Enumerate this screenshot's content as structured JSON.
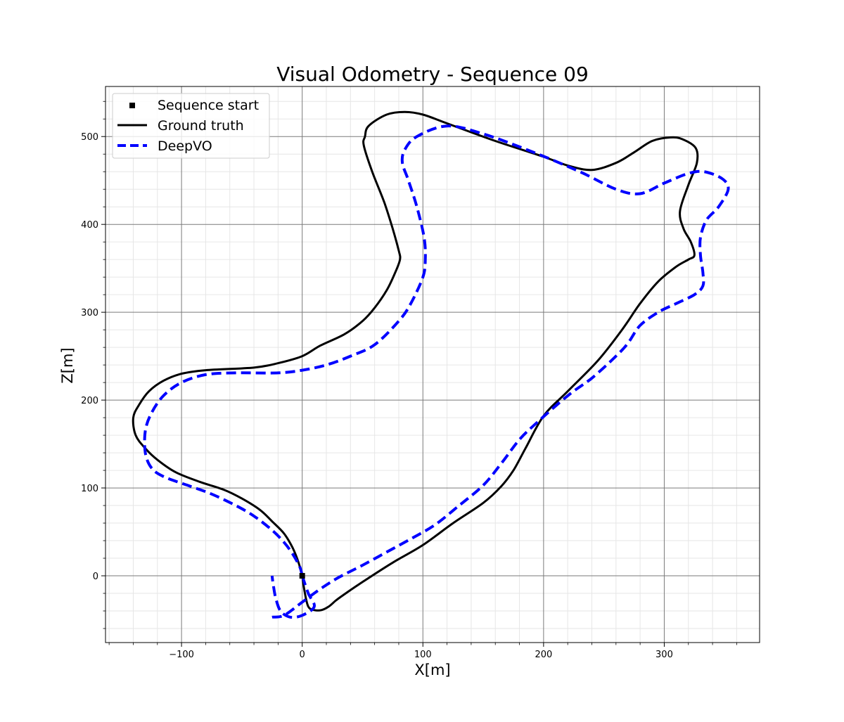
{
  "chart_data": {
    "type": "line",
    "title": "Visual Odometry - Sequence 09",
    "xlabel": "X[m]",
    "ylabel": "Z[m]",
    "xlim": [
      -163,
      379
    ],
    "ylim": [
      -76,
      557
    ],
    "x_ticks": [
      -100,
      0,
      100,
      200,
      300
    ],
    "x_tick_labels": [
      "−100",
      "0",
      "100",
      "200",
      "300"
    ],
    "y_ticks": [
      0,
      100,
      200,
      300,
      400,
      500
    ],
    "y_tick_labels": [
      "0",
      "100",
      "200",
      "300",
      "400",
      "500"
    ],
    "grid": {
      "major": true,
      "minor": true
    },
    "legend_position": "upper-left",
    "legend": [
      "Sequence start",
      "Ground truth",
      "DeepVO"
    ],
    "start_point": {
      "name": "Sequence start",
      "x": 0,
      "y": 0,
      "marker": "square",
      "color": "#000000"
    },
    "series": [
      {
        "name": "Ground truth",
        "color": "#000000",
        "style": "solid",
        "points": [
          [
            0,
            0
          ],
          [
            2,
            -18
          ],
          [
            5,
            -35
          ],
          [
            10,
            -39
          ],
          [
            16,
            -39
          ],
          [
            22,
            -35
          ],
          [
            28,
            -28
          ],
          [
            34,
            -22
          ],
          [
            50,
            -7
          ],
          [
            75,
            15
          ],
          [
            100,
            35
          ],
          [
            125,
            60
          ],
          [
            150,
            83
          ],
          [
            165,
            102
          ],
          [
            175,
            120
          ],
          [
            185,
            145
          ],
          [
            200,
            182
          ],
          [
            220,
            210
          ],
          [
            245,
            245
          ],
          [
            265,
            280
          ],
          [
            280,
            310
          ],
          [
            295,
            335
          ],
          [
            310,
            352
          ],
          [
            320,
            360
          ],
          [
            325,
            365
          ],
          [
            322,
            380
          ],
          [
            316,
            395
          ],
          [
            313,
            415
          ],
          [
            320,
            445
          ],
          [
            327,
            470
          ],
          [
            326,
            487
          ],
          [
            315,
            497
          ],
          [
            305,
            499
          ],
          [
            290,
            495
          ],
          [
            275,
            482
          ],
          [
            260,
            470
          ],
          [
            240,
            462
          ],
          [
            220,
            467
          ],
          [
            200,
            477
          ],
          [
            160,
            495
          ],
          [
            120,
            515
          ],
          [
            100,
            525
          ],
          [
            85,
            528
          ],
          [
            70,
            525
          ],
          [
            55,
            512
          ],
          [
            52,
            500
          ],
          [
            51,
            490
          ],
          [
            58,
            460
          ],
          [
            68,
            425
          ],
          [
            75,
            395
          ],
          [
            80,
            370
          ],
          [
            81,
            360
          ],
          [
            77,
            345
          ],
          [
            70,
            325
          ],
          [
            60,
            305
          ],
          [
            50,
            290
          ],
          [
            35,
            275
          ],
          [
            15,
            262
          ],
          [
            0,
            250
          ],
          [
            -20,
            242
          ],
          [
            -40,
            237
          ],
          [
            -80,
            234
          ],
          [
            -100,
            230
          ],
          [
            -115,
            222
          ],
          [
            -127,
            210
          ],
          [
            -135,
            195
          ],
          [
            -140,
            180
          ],
          [
            -138,
            160
          ],
          [
            -130,
            145
          ],
          [
            -120,
            132
          ],
          [
            -105,
            118
          ],
          [
            -85,
            107
          ],
          [
            -65,
            98
          ],
          [
            -50,
            88
          ],
          [
            -35,
            75
          ],
          [
            -25,
            62
          ],
          [
            -15,
            48
          ],
          [
            -8,
            32
          ],
          [
            -3,
            15
          ],
          [
            0,
            0
          ]
        ]
      },
      {
        "name": "DeepVO",
        "color": "#0000ff",
        "style": "dashed",
        "points": [
          [
            0,
            0
          ],
          [
            5,
            -20
          ],
          [
            10,
            -35
          ],
          [
            0,
            -45
          ],
          [
            -10,
            -47
          ],
          [
            -18,
            -40
          ],
          [
            -22,
            -25
          ],
          [
            -24,
            -10
          ],
          [
            -25,
            0
          ],
          "break",
          [
            0,
            0
          ],
          [
            -2,
            10
          ],
          [
            -8,
            25
          ],
          [
            -15,
            38
          ],
          [
            -25,
            52
          ],
          [
            -40,
            68
          ],
          [
            -55,
            80
          ],
          [
            -75,
            93
          ],
          [
            -95,
            103
          ],
          [
            -115,
            113
          ],
          [
            -125,
            123
          ],
          [
            -130,
            140
          ],
          [
            -130,
            165
          ],
          [
            -125,
            185
          ],
          [
            -115,
            205
          ],
          [
            -100,
            220
          ],
          [
            -80,
            229
          ],
          [
            -55,
            231
          ],
          [
            -20,
            231
          ],
          [
            0,
            234
          ],
          [
            20,
            240
          ],
          [
            40,
            250
          ],
          [
            60,
            263
          ],
          [
            80,
            290
          ],
          [
            90,
            310
          ],
          [
            100,
            340
          ],
          [
            102,
            360
          ],
          [
            101,
            385
          ],
          [
            95,
            420
          ],
          [
            88,
            450
          ],
          [
            83,
            470
          ],
          [
            85,
            485
          ],
          [
            95,
            500
          ],
          [
            120,
            512
          ],
          [
            150,
            503
          ],
          [
            190,
            483
          ],
          [
            230,
            460
          ],
          [
            260,
            440
          ],
          [
            280,
            435
          ],
          [
            300,
            447
          ],
          [
            320,
            458
          ],
          [
            333,
            460
          ],
          [
            348,
            452
          ],
          [
            353,
            440
          ],
          [
            345,
            420
          ],
          [
            335,
            405
          ],
          [
            330,
            385
          ],
          [
            330,
            365
          ],
          [
            332,
            345
          ],
          [
            332,
            330
          ],
          [
            325,
            320
          ],
          [
            310,
            310
          ],
          [
            295,
            300
          ],
          [
            280,
            285
          ],
          [
            270,
            265
          ],
          [
            260,
            250
          ],
          [
            240,
            225
          ],
          [
            220,
            205
          ],
          [
            195,
            175
          ],
          [
            180,
            155
          ],
          [
            165,
            128
          ],
          [
            150,
            103
          ],
          [
            130,
            80
          ],
          [
            110,
            58
          ],
          [
            90,
            42
          ],
          [
            70,
            27
          ],
          [
            50,
            12
          ],
          [
            30,
            -2
          ],
          [
            15,
            -15
          ],
          [
            0,
            -30
          ],
          [
            -15,
            -45
          ],
          [
            -25,
            -47
          ]
        ]
      }
    ]
  }
}
